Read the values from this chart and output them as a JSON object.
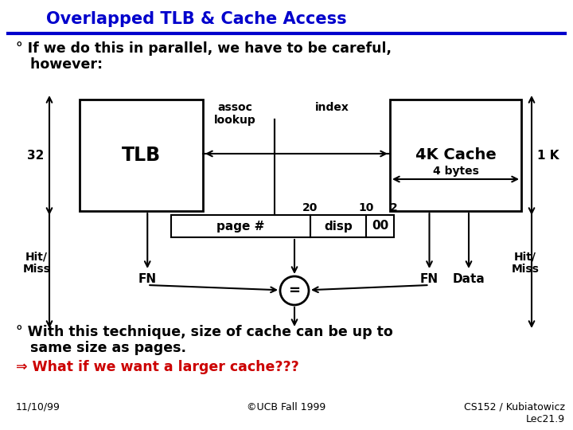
{
  "title": "Overlapped TLB & Cache Access",
  "title_color": "#0000CC",
  "bg_color": "#FFFFFF",
  "bullet1_line1": "° If we do this in parallel, we have to be careful,",
  "bullet1_line2": "   however:",
  "bullet2_line1": "° With this technique, size of cache can be up to",
  "bullet2_line2": "   same size as pages.",
  "arrow_line": "⇒ What if we want a larger cache???",
  "arrow_line_color": "#CC0000",
  "footer_left": "11/10/99",
  "footer_center": "©UCB Fall 1999",
  "footer_right": "CS152 / Kubiatowicz\nLec21.9",
  "tlb_label": "TLB",
  "cache_label": "4K Cache",
  "assoc_label": "assoc\nlookup",
  "index_label": "index",
  "label_32": "32",
  "label_1K": "1 K",
  "label_20": "20",
  "label_10": "10",
  "label_2": "2",
  "label_page": "page #",
  "label_disp": "disp",
  "label_00": "00",
  "label_4bytes": "4 bytes",
  "label_fn_left": "FN",
  "label_fn_right": "FN",
  "label_data": "Data",
  "label_hitmiss_left": "Hit/\nMiss",
  "label_hitmiss_right": "Hit/\nMiss",
  "label_eq": "="
}
